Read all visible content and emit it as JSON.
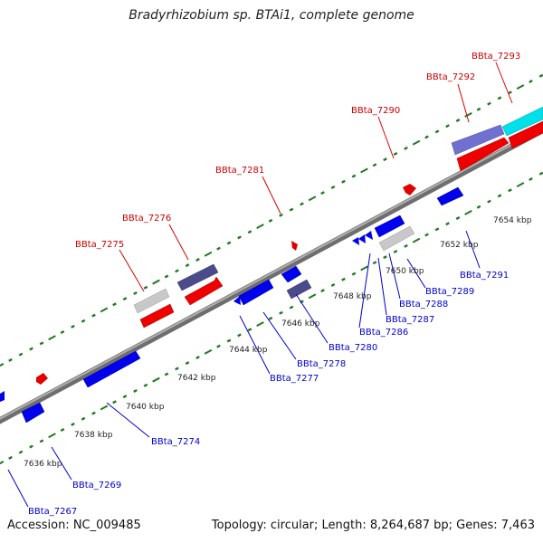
{
  "title": "Bradyrhizobium sp. BTAi1, complete genome",
  "footer": {
    "accession": "Accession: NC_009485",
    "summary": "Topology: circular; Length: 8,264,687 bp; Genes: 7,463"
  },
  "colors": {
    "backbone": "#8a8a8a",
    "tick": "#1f7a1f",
    "gene_red": "#ff0000",
    "gene_blue": "#0000ff",
    "gene_navy": "#4b4b8c",
    "gene_gray": "#c8c8c8",
    "gene_lavender": "#7070d0",
    "gene_cyan": "#00e0e8",
    "label_red": "#cc0000",
    "label_blue": "#0000cc"
  },
  "kbp_ticks": [
    "7636 kbp",
    "7638 kbp",
    "7640 kbp",
    "7642 kbp",
    "7644 kbp",
    "7646 kbp",
    "7648 kbp",
    "7650 kbp",
    "7652 kbp",
    "7654 kbp"
  ],
  "top_labels": [
    "BBta_7275",
    "BBta_7276",
    "BBta_7281",
    "BBta_7290",
    "BBta_7292",
    "BBta_7293"
  ],
  "bottom_labels": [
    "BBta_7267",
    "BBta_7269",
    "BBta_7274",
    "BBta_7277",
    "BBta_7278",
    "BBta_7280",
    "BBta_7286",
    "BBta_7287",
    "BBta_7288",
    "BBta_7289",
    "BBta_7291"
  ]
}
